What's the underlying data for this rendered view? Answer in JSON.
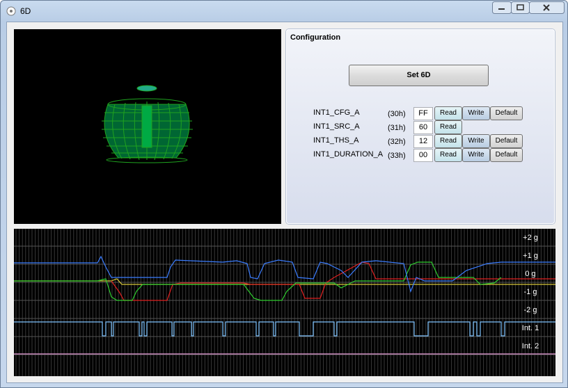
{
  "window": {
    "title": "6D"
  },
  "configuration": {
    "title": "Configuration",
    "button": "Set 6D",
    "registers": [
      {
        "name": "INT1_CFG_A",
        "address": "(30h)",
        "value": "FF",
        "buttons": [
          "Read",
          "Write",
          "Default"
        ]
      },
      {
        "name": "INT1_SRC_A",
        "address": "(31h)",
        "value": "60",
        "buttons": [
          "Read"
        ]
      },
      {
        "name": "INT1_THS_A",
        "address": "(32h)",
        "value": "12",
        "buttons": [
          "Read",
          "Write",
          "Default"
        ]
      },
      {
        "name": "INT1_DURATION_A",
        "address": "(33h)",
        "value": "00",
        "buttons": [
          "Read",
          "Write",
          "Default"
        ]
      }
    ]
  },
  "plot": {
    "labels": [
      "+2 g",
      "+1 g",
      "0 g",
      "-1 g",
      "-2 g",
      "Int. 1",
      "Int. 2"
    ]
  }
}
